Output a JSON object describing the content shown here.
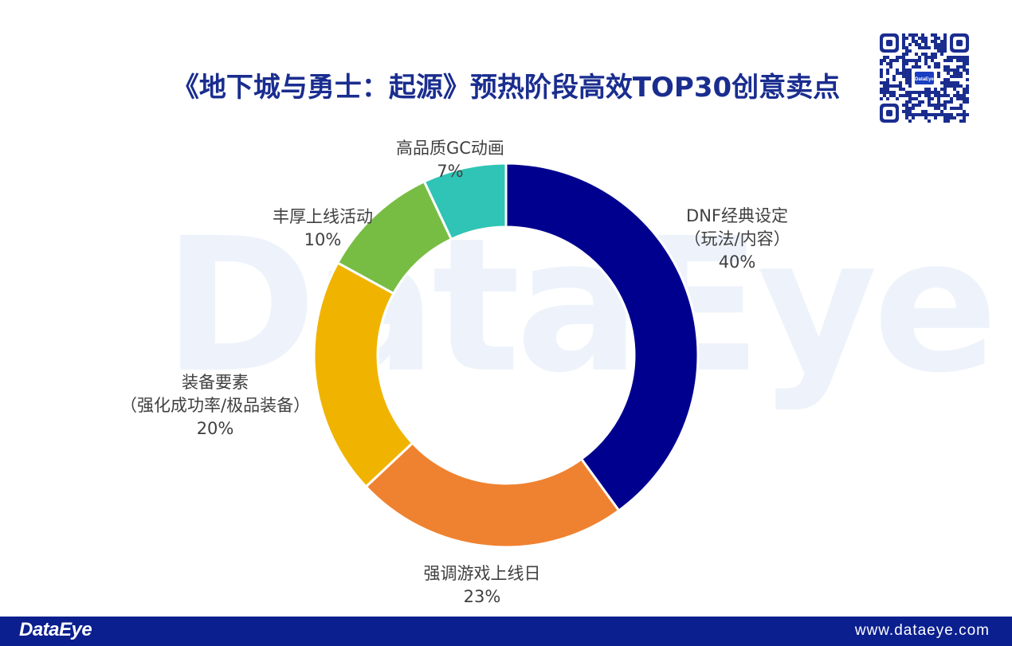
{
  "header": {
    "title": "《地下城与勇士：起源》预热阶段高效TOP30创意卖点"
  },
  "watermark": {
    "text": "DataEye"
  },
  "qr": {
    "center_text": "DataEye"
  },
  "chart_data": {
    "type": "pie",
    "style": "donut",
    "title": "《地下城与勇士：起源》预热阶段高效TOP30创意卖点",
    "slices": [
      {
        "name": "DNF经典设定（玩法/内容）",
        "name_lines": [
          "DNF经典设定",
          "（玩法/内容）"
        ],
        "value": 40,
        "label": "40%",
        "color": "#00008f"
      },
      {
        "name": "强调游戏上线日",
        "name_lines": [
          "强调游戏上线日"
        ],
        "value": 23,
        "label": "23%",
        "color": "#ef8230"
      },
      {
        "name": "装备要素（强化成功率/极品装备）",
        "name_lines": [
          "装备要素",
          "（强化成功率/极品装备）"
        ],
        "value": 20,
        "label": "20%",
        "color": "#f0b400"
      },
      {
        "name": "丰厚上线活动",
        "name_lines": [
          "丰厚上线活动"
        ],
        "value": 10,
        "label": "10%",
        "color": "#77bd43"
      },
      {
        "name": "高品质GC动画",
        "name_lines": [
          "高品质GC动画"
        ],
        "value": 7,
        "label": "7%",
        "color": "#2fc4b5"
      }
    ]
  },
  "footer": {
    "brand": "DataEye",
    "url": "www.dataeye.com"
  },
  "colors": {
    "title": "#1a2d8f",
    "footer_bg": "#0b1f8f",
    "label_text": "#404040"
  }
}
